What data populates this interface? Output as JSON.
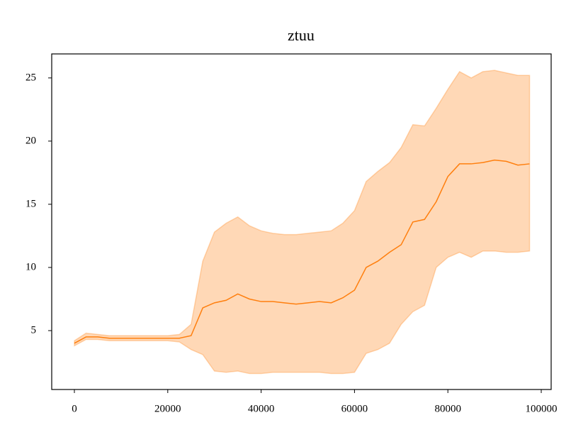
{
  "chart_data": {
    "type": "line",
    "title": "ztuu",
    "x": [
      0,
      2500,
      5000,
      7500,
      10000,
      12500,
      15000,
      17500,
      20000,
      22500,
      25000,
      27500,
      30000,
      32500,
      35000,
      37500,
      40000,
      42500,
      45000,
      47500,
      50000,
      52500,
      55000,
      57500,
      60000,
      62500,
      65000,
      67500,
      70000,
      72500,
      75000,
      77500,
      80000,
      82500,
      85000,
      87500,
      90000,
      92500,
      95000,
      97500
    ],
    "series": [
      {
        "color": "#ff7f0e",
        "band_opacity": 0.3,
        "values": [
          4.0,
          4.5,
          4.5,
          4.4,
          4.4,
          4.4,
          4.4,
          4.4,
          4.4,
          4.4,
          4.6,
          6.8,
          7.2,
          7.4,
          7.9,
          7.5,
          7.3,
          7.3,
          7.2,
          7.1,
          7.2,
          7.3,
          7.2,
          7.6,
          8.2,
          10.0,
          10.5,
          11.2,
          11.8,
          13.6,
          13.8,
          15.2,
          17.2,
          18.2,
          18.2,
          18.3,
          18.5,
          18.4,
          18.1,
          18.2
        ],
        "upper": [
          4.2,
          4.8,
          4.7,
          4.6,
          4.6,
          4.6,
          4.6,
          4.6,
          4.6,
          4.7,
          5.5,
          10.5,
          12.8,
          13.5,
          14.0,
          13.3,
          12.9,
          12.7,
          12.6,
          12.6,
          12.7,
          12.8,
          12.9,
          13.5,
          14.5,
          16.8,
          17.6,
          18.3,
          19.5,
          21.3,
          21.2,
          22.6,
          24.1,
          25.5,
          25.0,
          25.5,
          25.6,
          25.4,
          25.2,
          25.2
        ],
        "lower": [
          3.8,
          4.3,
          4.3,
          4.2,
          4.2,
          4.2,
          4.2,
          4.2,
          4.2,
          4.1,
          3.5,
          3.1,
          1.8,
          1.7,
          1.8,
          1.6,
          1.6,
          1.7,
          1.7,
          1.7,
          1.7,
          1.7,
          1.6,
          1.6,
          1.7,
          3.2,
          3.5,
          4.0,
          5.5,
          6.5,
          7.0,
          10.0,
          10.8,
          11.2,
          10.8,
          11.3,
          11.3,
          11.2,
          11.2,
          11.3
        ]
      }
    ],
    "xlim": [
      -4856,
      102124
    ],
    "ylim": [
      0.34,
      26.9
    ],
    "xticks": [
      0,
      20000,
      40000,
      60000,
      80000,
      100000
    ],
    "yticks": [
      5,
      10,
      15,
      20,
      25
    ]
  }
}
